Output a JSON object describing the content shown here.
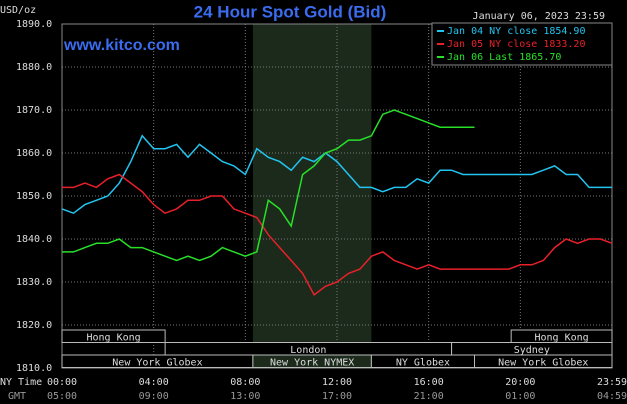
{
  "chart_data": {
    "type": "line",
    "title": "24 Hour Spot Gold (Bid)",
    "website": "www.kitco.com",
    "y_unit": "USD/oz",
    "timestamp": "January 06, 2023 23:59",
    "x_axis_label": "NY Time",
    "x2_axis_label": "GMT",
    "x": [
      0,
      0.5,
      1,
      1.5,
      2,
      2.5,
      3,
      3.5,
      4,
      4.5,
      5,
      5.5,
      6,
      6.5,
      7,
      7.5,
      8,
      8.5,
      9,
      9.5,
      10,
      10.5,
      11,
      11.5,
      12,
      12.5,
      13,
      13.5,
      14,
      14.5,
      15,
      15.5,
      16,
      16.5,
      17,
      17.5,
      18,
      18.5,
      19,
      19.5,
      20,
      20.5,
      21,
      21.5,
      22,
      22.5,
      23,
      23.5,
      24
    ],
    "series": [
      {
        "name": "Jan 04 NY close 1854.90",
        "color": "#22c4f0",
        "values": [
          1847,
          1846,
          1848,
          1849,
          1850,
          1853,
          1858,
          1864,
          1861,
          1861,
          1862,
          1859,
          1862,
          1860,
          1858,
          1857,
          1855,
          1861,
          1859,
          1858,
          1856,
          1859,
          1858,
          1860,
          1858,
          1855,
          1852,
          1852,
          1851,
          1852,
          1852,
          1854,
          1853,
          1856,
          1856,
          1855,
          1855,
          1855,
          1855,
          1855,
          1855,
          1855,
          1856,
          1857,
          1855,
          1855,
          1852,
          1852,
          1852
        ]
      },
      {
        "name": "Jan 05 NY close 1833.20",
        "color": "#e8202a",
        "values": [
          1852,
          1852,
          1853,
          1852,
          1854,
          1855,
          1853,
          1851,
          1848,
          1846,
          1847,
          1849,
          1849,
          1850,
          1850,
          1847,
          1846,
          1845,
          1841,
          1838,
          1835,
          1832,
          1827,
          1829,
          1830,
          1832,
          1833,
          1836,
          1837,
          1835,
          1834,
          1833,
          1834,
          1833,
          1833,
          1833,
          1833,
          1833,
          1833,
          1833,
          1834,
          1834,
          1835,
          1838,
          1840,
          1839,
          1840,
          1840,
          1839
        ]
      },
      {
        "name": "Jan 06 Last 1865.70",
        "color": "#28e028",
        "values": [
          1837,
          1837,
          1838,
          1839,
          1839,
          1840,
          1838,
          1838,
          1837,
          1836,
          1835,
          1836,
          1835,
          1836,
          1838,
          1837,
          1836,
          1837,
          1849,
          1847,
          1843,
          1855,
          1857,
          1860,
          1861,
          1863,
          1863,
          1864,
          1869,
          1870,
          1869,
          1868,
          1867,
          1866,
          1866,
          1866,
          1866,
          null,
          null,
          null,
          null,
          null,
          null,
          null,
          null,
          null,
          null,
          null,
          null
        ]
      }
    ],
    "xlim": [
      0,
      24
    ],
    "xticks": [
      {
        "value": 0,
        "label": "00:00"
      },
      {
        "value": 4,
        "label": "04:00"
      },
      {
        "value": 8,
        "label": "08:00"
      },
      {
        "value": 12,
        "label": "12:00"
      },
      {
        "value": 16,
        "label": "16:00"
      },
      {
        "value": 20,
        "label": "20:00"
      },
      {
        "value": 24,
        "label": "23:59"
      }
    ],
    "x2ticks": [
      "05:00",
      "09:00",
      "13:00",
      "17:00",
      "21:00",
      "01:00",
      "04:59"
    ],
    "ylim": [
      1810,
      1890
    ],
    "yticks": [
      {
        "value": 1810,
        "label": "1810.0"
      },
      {
        "value": 1820,
        "label": "1820.0"
      },
      {
        "value": 1830,
        "label": "1830.0"
      },
      {
        "value": 1840,
        "label": "1840.0"
      },
      {
        "value": 1850,
        "label": "1850.0"
      },
      {
        "value": 1860,
        "label": "1860.0"
      },
      {
        "value": 1870,
        "label": "1870.0"
      },
      {
        "value": 1880,
        "label": "1880.0"
      },
      {
        "value": 1890,
        "label": "1890.0"
      }
    ],
    "grid": true,
    "legend": "top-right",
    "sessions": [
      {
        "label": "Hong Kong",
        "start": 0,
        "end": 4.5
      },
      {
        "label": "Hong Kong",
        "start": 19.6,
        "end": 24
      },
      {
        "label": "London",
        "start": 4.5,
        "end": 17
      },
      {
        "label": "Sydney",
        "start": 17,
        "end": 24
      },
      {
        "label": "New York Globex",
        "start": 0,
        "end": 8.33
      },
      {
        "label": "New York NYMEX",
        "start": 8.33,
        "end": 13.5
      },
      {
        "label": "NY Globex",
        "start": 13.5,
        "end": 18
      },
      {
        "label": "New York Globex",
        "start": 18,
        "end": 24
      }
    ]
  }
}
